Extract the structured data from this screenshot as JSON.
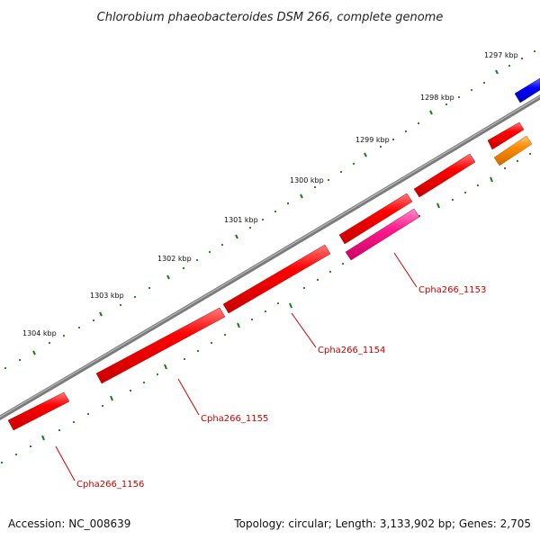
{
  "title": "Chlorobium phaeobacteroides DSM 266, complete genome",
  "footer": {
    "accession": "Accession: NC_008639",
    "summary": "Topology: circular; Length: 3,133,902 bp; Genes: 2,705"
  },
  "kbp_labels": [
    "1297 kbp",
    "1298 kbp",
    "1299 kbp",
    "1300 kbp",
    "1301 kbp",
    "1302 kbp",
    "1303 kbp",
    "1304 kbp"
  ],
  "gene_labels": [
    "Cpha266_1153",
    "Cpha266_1154",
    "Cpha266_1155",
    "Cpha266_1156"
  ],
  "colors": {
    "backbone": "#808080",
    "tick": "#1a7a1a",
    "gene_red": "#ff0000",
    "gene_pink": "#ff1a8c",
    "gene_orange": "#ff8c00",
    "gene_blue": "#0000ff",
    "label": "#cc0000"
  }
}
